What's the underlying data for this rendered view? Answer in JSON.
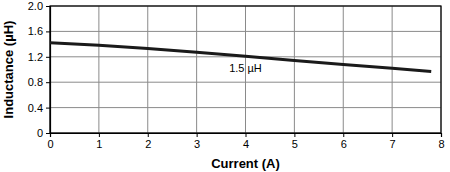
{
  "chart_data": {
    "type": "line",
    "x_label": "Current (A)",
    "y_label": "Inductance (µH)",
    "annotation": "1.5 µH",
    "x": [
      0,
      1,
      2,
      3,
      4,
      5,
      6,
      7,
      7.8
    ],
    "values": [
      1.42,
      1.38,
      1.33,
      1.27,
      1.21,
      1.14,
      1.08,
      1.02,
      0.97
    ],
    "color": "#1a1a1a",
    "xlim": [
      0,
      8
    ],
    "xticks": [
      0,
      1,
      2,
      3,
      4,
      5,
      6,
      7,
      8
    ],
    "ylim": [
      0,
      2
    ],
    "yticks": [
      0,
      0.4,
      0.8,
      1.2,
      1.6,
      {
        "value": 2,
        "label": "2.0"
      }
    ],
    "grid": true
  }
}
